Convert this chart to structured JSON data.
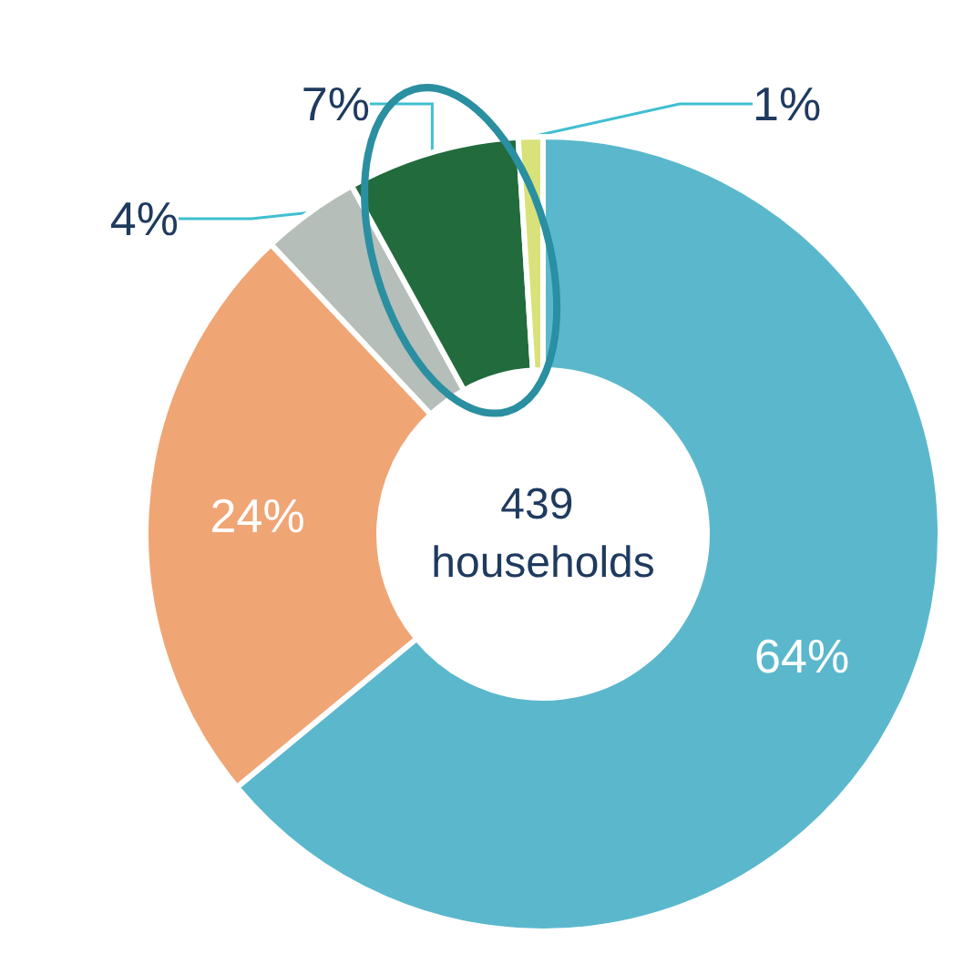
{
  "chart_data": {
    "type": "donut",
    "title": "439 households",
    "categories": [
      null,
      null,
      null,
      null,
      null
    ],
    "values": [
      64,
      24,
      4,
      7,
      1
    ],
    "value_labels": [
      "64%",
      "24%",
      "4%",
      "7%",
      "1%"
    ],
    "colors": [
      "#5bb8cc",
      "#f0a575",
      "#b5beb9",
      "#226b3c",
      "#d9e27a"
    ]
  }
}
